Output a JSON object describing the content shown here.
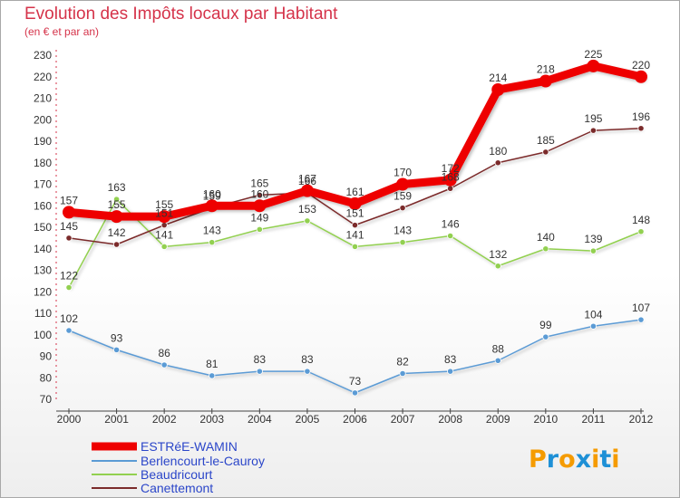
{
  "chart_data": {
    "type": "line",
    "title": "Evolution des Impôts locaux par Habitant",
    "subtitle": "(en € et par an)",
    "categories": [
      "2000",
      "2001",
      "2002",
      "2003",
      "2004",
      "2005",
      "2006",
      "2007",
      "2008",
      "2009",
      "2010",
      "2011",
      "2012"
    ],
    "ylim": [
      70,
      230
    ],
    "yticks": [
      70,
      80,
      90,
      100,
      110,
      120,
      130,
      140,
      150,
      160,
      170,
      180,
      190,
      200,
      210,
      220,
      230
    ],
    "grid": false,
    "legend_position": "bottom-left",
    "series": [
      {
        "name": "ESTRéE-WAMIN",
        "color": "#ee0000",
        "values": [
          157,
          155,
          155,
          160,
          160,
          167,
          161,
          170,
          172,
          214,
          218,
          225,
          220
        ]
      },
      {
        "name": "Berlencourt-le-Cauroy",
        "color": "#5b9bd5",
        "values": [
          102,
          93,
          86,
          81,
          83,
          83,
          73,
          82,
          83,
          88,
          99,
          104,
          107
        ]
      },
      {
        "name": "Beaudricourt",
        "color": "#92d050",
        "values": [
          122,
          163,
          141,
          143,
          149,
          153,
          141,
          143,
          146,
          132,
          140,
          139,
          148
        ]
      },
      {
        "name": "Canettemont",
        "color": "#7b2b2b",
        "values": [
          145,
          142,
          151,
          159,
          165,
          166,
          151,
          159,
          168,
          180,
          185,
          195,
          196
        ]
      }
    ]
  },
  "logo": {
    "text": "Proxiti",
    "letter_colors": [
      "#f59b00",
      "#1e90d6",
      "#f59b00",
      "#1e90d6",
      "#f59b00",
      "#1e90d6",
      "#f59b00"
    ]
  }
}
